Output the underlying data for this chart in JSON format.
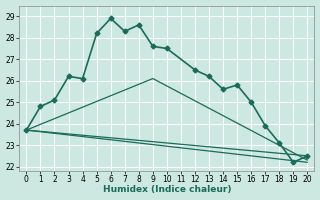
{
  "xlabel": "Humidex (Indice chaleur)",
  "xlim": [
    -0.5,
    20.5
  ],
  "ylim": [
    21.8,
    29.5
  ],
  "yticks": [
    22,
    23,
    24,
    25,
    26,
    27,
    28,
    29
  ],
  "xticks": [
    0,
    1,
    2,
    3,
    4,
    5,
    6,
    7,
    8,
    9,
    10,
    11,
    12,
    13,
    14,
    15,
    16,
    17,
    18,
    19,
    20
  ],
  "bg_color": "#cce8e0",
  "grid_color": "#b0d8d0",
  "line_color": "#1a6b5a",
  "main_line": {
    "x": [
      0,
      1,
      2,
      3,
      4,
      5,
      6,
      7,
      8,
      9,
      10,
      12,
      13,
      14,
      15,
      16,
      17,
      18,
      19,
      20
    ],
    "y": [
      23.7,
      24.8,
      25.1,
      26.2,
      26.1,
      28.2,
      28.9,
      28.3,
      28.6,
      27.6,
      27.5,
      26.5,
      26.2,
      25.6,
      25.8,
      25.0,
      23.9,
      23.1,
      22.2,
      22.5
    ]
  },
  "straight_lines": [
    {
      "x": [
        0,
        20
      ],
      "y": [
        23.7,
        22.2
      ]
    },
    {
      "x": [
        0,
        20
      ],
      "y": [
        23.7,
        22.5
      ]
    },
    {
      "x": [
        0,
        9,
        20
      ],
      "y": [
        23.7,
        26.1,
        22.3
      ]
    }
  ]
}
